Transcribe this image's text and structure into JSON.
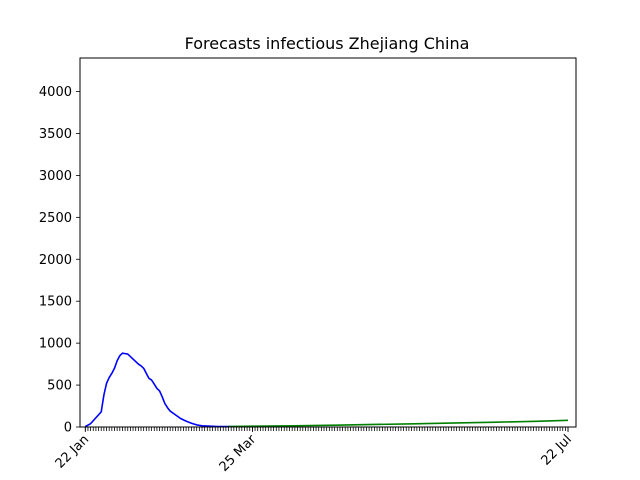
{
  "chart_data": {
    "type": "line",
    "title": "Forecasts infectious Zhejiang China",
    "xlabel": "",
    "ylabel": "",
    "ylim": [
      0,
      4400
    ],
    "x_range": [
      "2020-01-20",
      "2020-07-25"
    ],
    "yticks": [
      0,
      500,
      1000,
      1500,
      2000,
      2500,
      3000,
      3500,
      4000
    ],
    "xtick_labels": [
      {
        "date": "2020-01-22",
        "label": "22 Jan"
      },
      {
        "date": "2020-03-25",
        "label": "25 Mar"
      },
      {
        "date": "2020-07-22",
        "label": "22 Jul"
      }
    ],
    "minor_ticks": {
      "start": "2020-01-22",
      "end": "2020-07-22",
      "step_days": 1
    },
    "grid": false,
    "series": [
      {
        "color": "#0000ff",
        "x": [
          "2020-01-22",
          "2020-01-24",
          "2020-01-26",
          "2020-01-28",
          "2020-01-29",
          "2020-01-30",
          "2020-01-31",
          "2020-02-01",
          "2020-02-02",
          "2020-02-03",
          "2020-02-04",
          "2020-02-05",
          "2020-02-06",
          "2020-02-07",
          "2020-02-08",
          "2020-02-09",
          "2020-02-10",
          "2020-02-11",
          "2020-02-12",
          "2020-02-13",
          "2020-02-14",
          "2020-02-15",
          "2020-02-16",
          "2020-02-17",
          "2020-02-18",
          "2020-02-19",
          "2020-02-20",
          "2020-02-21",
          "2020-02-22",
          "2020-02-23",
          "2020-02-25",
          "2020-02-27",
          "2020-02-29",
          "2020-03-02",
          "2020-03-04",
          "2020-03-06",
          "2020-03-09",
          "2020-03-12",
          "2020-03-16",
          "2020-03-20",
          "2020-03-24"
        ],
        "y": [
          5,
          40,
          110,
          180,
          380,
          520,
          590,
          640,
          700,
          790,
          850,
          880,
          875,
          870,
          840,
          810,
          780,
          750,
          730,
          700,
          640,
          580,
          560,
          510,
          460,
          430,
          360,
          280,
          230,
          190,
          145,
          100,
          70,
          45,
          25,
          15,
          10,
          6,
          5,
          4,
          3
        ]
      },
      {
        "color": "#008000",
        "x": [
          "2020-03-16",
          "2020-03-25",
          "2020-04-10",
          "2020-04-25",
          "2020-05-10",
          "2020-05-25",
          "2020-06-10",
          "2020-06-25",
          "2020-07-10",
          "2020-07-22"
        ],
        "y": [
          5,
          10,
          15,
          22,
          30,
          38,
          48,
          58,
          68,
          80
        ]
      }
    ]
  }
}
